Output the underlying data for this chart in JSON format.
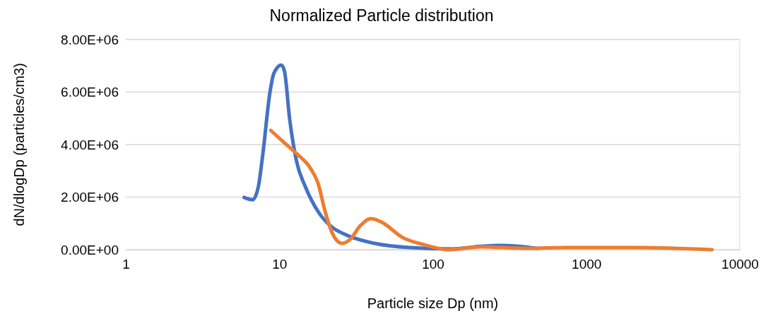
{
  "chart_data": {
    "type": "line",
    "title": "Normalized Particle distribution",
    "xlabel": "Particle size Dp (nm)",
    "ylabel": "dN/dlogDp (particles/cm3)",
    "log": "x",
    "grid": "y",
    "line_style": "solid",
    "marker": "none",
    "xlim": [
      1,
      10000
    ],
    "xticks": [
      1,
      10,
      100,
      1000,
      10000
    ],
    "ylim": [
      0,
      8000000
    ],
    "yticks": [
      {
        "value": 0,
        "label": "0.00E+00"
      },
      {
        "value": 2000000,
        "label": "2.00E+06"
      },
      {
        "value": 4000000,
        "label": "4.00E+06"
      },
      {
        "value": 6000000,
        "label": "6.00E+06"
      },
      {
        "value": 8000000,
        "label": "8.00E+06"
      }
    ],
    "series": [
      {
        "color": "#4472c4",
        "x": [
          5.9,
          6.7,
          7.3,
          7.8,
          8.7,
          9.2,
          10.3,
          10.8,
          11.7,
          13,
          14.8,
          17.9,
          22,
          27.3,
          41.7,
          71,
          134,
          204,
          280,
          478
        ],
        "values": [
          1990000,
          1900000,
          2390000,
          3600000,
          6000000,
          6700000,
          7030000,
          6800000,
          4940000,
          3330000,
          2390000,
          1450000,
          860000,
          560000,
          240000,
          80000,
          30000,
          130000,
          160000,
          50000
        ]
      },
      {
        "color": "#ed7d31",
        "x": [
          8.8,
          10.5,
          13,
          16.1,
          17.9,
          19.9,
          22.1,
          25.6,
          28.8,
          33.7,
          39.5,
          46.3,
          63.7,
          87.5,
          127,
          204,
          407,
          727,
          2100,
          6600
        ],
        "values": [
          4540000,
          4130000,
          3650000,
          3060000,
          2520000,
          1450000,
          640000,
          240000,
          380000,
          910000,
          1180000,
          1050000,
          460000,
          190000,
          0,
          110000,
          50000,
          80000,
          80000,
          0
        ]
      }
    ]
  }
}
